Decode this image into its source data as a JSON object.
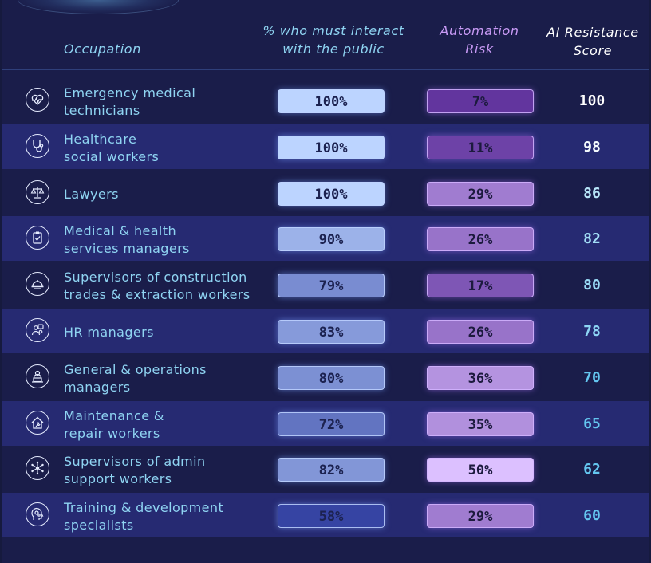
{
  "header": {
    "occupation": "Occupation",
    "public": "% who must interact\nwith the public",
    "automation": "Automation\nRisk",
    "score": "AI Resistance\nScore"
  },
  "colors": {
    "public_scale": [
      "#2c3a9c",
      "#bcd4ff"
    ],
    "automation_scale": [
      "#5c2f9a",
      "#dcc0ff"
    ],
    "score_high": "#ffffff",
    "score_low": "#64c6f0"
  },
  "chart_data": {
    "type": "table",
    "columns": [
      "Occupation",
      "% who must interact with the public",
      "Automation Risk",
      "AI Resistance Score"
    ],
    "rows": [
      {
        "occupation": "Emergency medical\ntechnicians",
        "public": "100%",
        "public_value": 100,
        "automation": "7%",
        "automation_value": 7,
        "score": "100",
        "icon": "heart-pulse-icon"
      },
      {
        "occupation": "Healthcare\nsocial workers",
        "public": "100%",
        "public_value": 100,
        "automation": "11%",
        "automation_value": 11,
        "score": "98",
        "icon": "stethoscope-icon"
      },
      {
        "occupation": "Lawyers",
        "public": "100%",
        "public_value": 100,
        "automation": "29%",
        "automation_value": 29,
        "score": "86",
        "icon": "scales-icon"
      },
      {
        "occupation": "Medical & health\nservices managers",
        "public": "90%",
        "public_value": 90,
        "automation": "26%",
        "automation_value": 26,
        "score": "82",
        "icon": "clipboard-icon"
      },
      {
        "occupation": "Supervisors of construction\ntrades & extraction workers",
        "public": "79%",
        "public_value": 79,
        "automation": "17%",
        "automation_value": 17,
        "score": "80",
        "icon": "hardhat-icon"
      },
      {
        "occupation": "HR managers",
        "public": "83%",
        "public_value": 83,
        "automation": "26%",
        "automation_value": 26,
        "score": "78",
        "icon": "people-icon"
      },
      {
        "occupation": "General & operations\nmanagers",
        "public": "80%",
        "public_value": 80,
        "automation": "36%",
        "automation_value": 36,
        "score": "70",
        "icon": "manager-laptop-icon"
      },
      {
        "occupation": "Maintenance &\nrepair workers",
        "public": "72%",
        "public_value": 72,
        "automation": "35%",
        "automation_value": 35,
        "score": "65",
        "icon": "house-wrench-icon"
      },
      {
        "occupation": "Supervisors of admin\nsupport workers",
        "public": "82%",
        "public_value": 82,
        "automation": "50%",
        "automation_value": 50,
        "score": "62",
        "icon": "network-icon"
      },
      {
        "occupation": "Training & development\nspecialists",
        "public": "58%",
        "public_value": 58,
        "automation": "29%",
        "automation_value": 29,
        "score": "60",
        "icon": "gears-head-icon"
      }
    ]
  }
}
